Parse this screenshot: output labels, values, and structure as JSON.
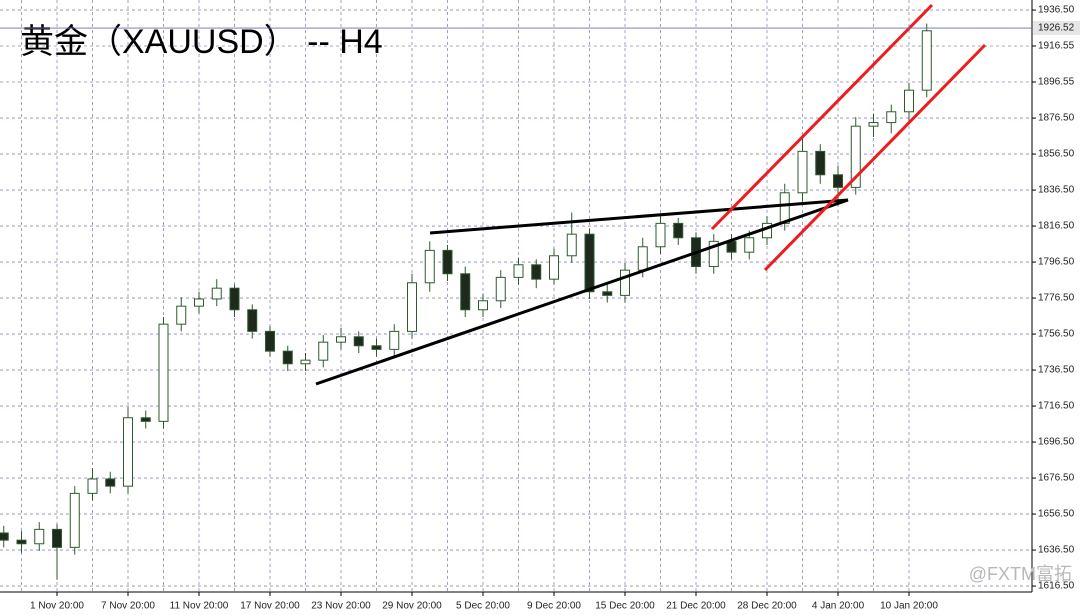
{
  "chart_data": {
    "type": "candlestick",
    "title": "黄金（XAUUSD） -- H4",
    "watermark": "@FXTM富拓",
    "categories": [
      null,
      null,
      null,
      "1 Nov 20:00",
      null,
      null,
      null,
      "7 Nov 20:00",
      null,
      null,
      null,
      "11 Nov 20:00",
      null,
      null,
      null,
      "17 Nov 20:00",
      null,
      null,
      null,
      "23 Nov 20:00",
      null,
      null,
      null,
      "29 Nov 20:00",
      null,
      null,
      null,
      "5 Dec 20:00",
      null,
      null,
      null,
      "9 Dec 20:00",
      null,
      null,
      null,
      "15 Dec 20:00",
      null,
      null,
      null,
      "21 Dec 20:00",
      null,
      null,
      null,
      "28 Dec 20:00",
      null,
      null,
      null,
      "4 Jan 20:00",
      null,
      null,
      null,
      "10 Jan 20:00",
      null
    ],
    "open": [
      1646,
      1642,
      1640,
      1648,
      1638,
      1668,
      1676,
      1672,
      1710,
      1708,
      1762,
      1772,
      1776,
      1782,
      1770,
      1758,
      1747,
      1740,
      1742,
      1752,
      1755,
      1750,
      1748,
      1758,
      1785,
      1803,
      1790,
      1770,
      1775,
      1788,
      1795,
      1787,
      1800,
      1812,
      1780,
      1778,
      1792,
      1805,
      1818,
      1810,
      1794,
      1808,
      1802,
      1810,
      1818,
      1835,
      1858,
      1845,
      1838,
      1872,
      1874,
      1880,
      1892
    ],
    "high": [
      1650,
      1647,
      1652,
      1651,
      1672,
      1682,
      1680,
      1716,
      1714,
      1766,
      1777,
      1780,
      1787,
      1784,
      1773,
      1761,
      1750,
      1746,
      1756,
      1760,
      1758,
      1754,
      1762,
      1790,
      1808,
      1806,
      1794,
      1779,
      1792,
      1799,
      1798,
      1804,
      1824,
      1815,
      1784,
      1796,
      1810,
      1822,
      1821,
      1813,
      1812,
      1812,
      1814,
      1822,
      1840,
      1866,
      1862,
      1850,
      1877,
      1879,
      1884,
      1896,
      1929
    ],
    "low": [
      1638,
      1635,
      1636,
      1620,
      1634,
      1664,
      1668,
      1668,
      1704,
      1704,
      1758,
      1768,
      1772,
      1766,
      1754,
      1744,
      1736,
      1736,
      1738,
      1748,
      1746,
      1744,
      1744,
      1754,
      1780,
      1786,
      1766,
      1766,
      1771,
      1784,
      1782,
      1784,
      1796,
      1776,
      1774,
      1774,
      1788,
      1801,
      1806,
      1790,
      1790,
      1798,
      1798,
      1806,
      1814,
      1830,
      1840,
      1828,
      1834,
      1866,
      1868,
      1874,
      1888
    ],
    "close": [
      1642,
      1640,
      1648,
      1638,
      1668,
      1676,
      1672,
      1710,
      1708,
      1762,
      1772,
      1776,
      1782,
      1770,
      1758,
      1747,
      1740,
      1742,
      1752,
      1755,
      1750,
      1748,
      1758,
      1785,
      1803,
      1790,
      1770,
      1775,
      1788,
      1795,
      1787,
      1800,
      1812,
      1780,
      1778,
      1792,
      1805,
      1818,
      1810,
      1794,
      1808,
      1802,
      1810,
      1818,
      1835,
      1858,
      1845,
      1838,
      1872,
      1874,
      1880,
      1892,
      1925
    ],
    "up_color": "#ffffff",
    "down_color": "#1e2a1e",
    "wick_color": "#2f5a2f",
    "current_price": 1926.52,
    "ylim": [
      1613.2,
      1942.1
    ],
    "yticks": [
      {
        "value": 1616.5,
        "label": "1616.50"
      },
      {
        "value": 1636.5,
        "label": "1636.50"
      },
      {
        "value": 1656.5,
        "label": "1656.50"
      },
      {
        "value": 1676.5,
        "label": "1676.50"
      },
      {
        "value": 1696.5,
        "label": "1696.50"
      },
      {
        "value": 1716.5,
        "label": "1716.50"
      },
      {
        "value": 1736.5,
        "label": "1736.50"
      },
      {
        "value": 1756.5,
        "label": "1756.50"
      },
      {
        "value": 1776.5,
        "label": "1776.50"
      },
      {
        "value": 1796.5,
        "label": "1796.50"
      },
      {
        "value": 1816.5,
        "label": "1816.50"
      },
      {
        "value": 1836.5,
        "label": "1836.50"
      },
      {
        "value": 1856.5,
        "label": "1856.50"
      },
      {
        "value": 1876.5,
        "label": "1876.50"
      },
      {
        "value": 1896.55,
        "label": "1896.55"
      },
      {
        "value": 1916.55,
        "label": "1916.55"
      },
      {
        "value": 1936.5,
        "label": "1936.50"
      }
    ],
    "grid": true
  }
}
